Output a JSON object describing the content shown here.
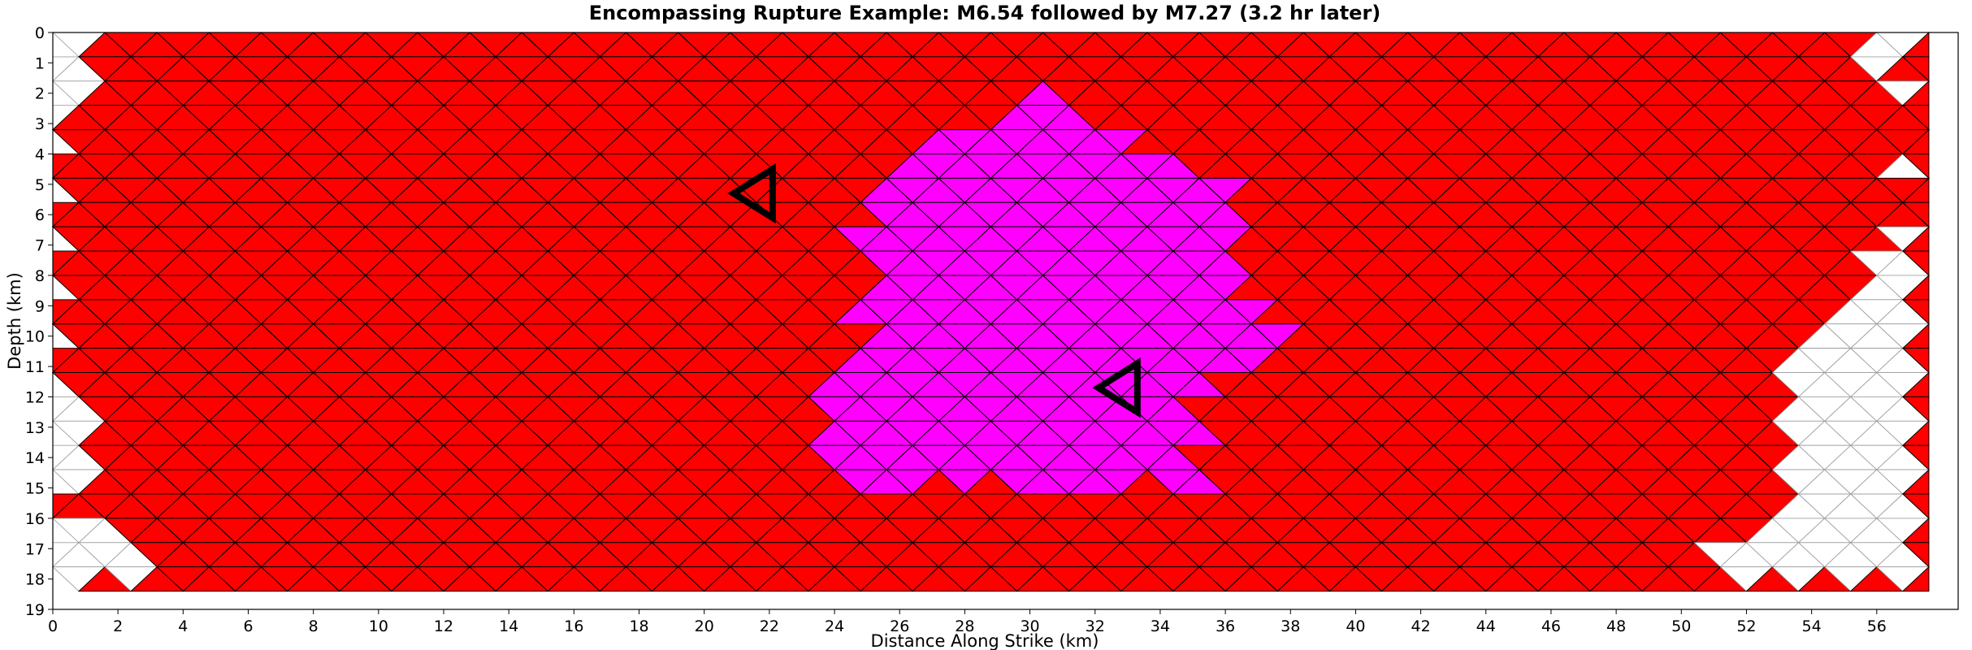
{
  "chart_data": {
    "type": "heatmap",
    "title": "Encompassing Rupture Example: M6.54 followed by M7.27 (3.2 hr later)",
    "xlabel": "Distance Along Strike (km)",
    "ylabel": "Depth (km)",
    "xlim": [
      0,
      58.5
    ],
    "ylim": [
      19,
      0
    ],
    "x_ticks": [
      "0",
      "2",
      "4",
      "6",
      "8",
      "10",
      "12",
      "14",
      "16",
      "18",
      "20",
      "22",
      "24",
      "26",
      "28",
      "30",
      "32",
      "34",
      "36",
      "38",
      "40",
      "42",
      "44",
      "46",
      "48",
      "50",
      "52",
      "54",
      "56"
    ],
    "y_ticks": [
      "0",
      "1",
      "2",
      "3",
      "4",
      "5",
      "6",
      "7",
      "8",
      "9",
      "10",
      "11",
      "12",
      "13",
      "14",
      "15",
      "16",
      "17",
      "18",
      "19"
    ],
    "mesh": {
      "element": "triangle",
      "spacing_km": 1.6,
      "extent_x_km": [
        0,
        57.6
      ],
      "extent_y_km": [
        0,
        18
      ]
    },
    "series": [
      {
        "color": "#ff0000",
        "extent_x_km": [
          0,
          57.6
        ],
        "extent_y_km": [
          0,
          18
        ]
      },
      {
        "color": "#ff00ff",
        "extent_x_km": [
          24.0,
          38.4
        ],
        "extent_y_km": [
          2.0,
          15.3
        ]
      }
    ],
    "hypocenters": [
      {
        "x": 21.6,
        "y": 5.3,
        "color": "#000000"
      },
      {
        "x": 32.8,
        "y": 11.7,
        "color": "#000000"
      }
    ],
    "colors": {
      "first_rupture": "#ff0000",
      "second_rupture": "#ff00ff",
      "mesh_edge": "#000000",
      "unruptured_edge": "#a0a0a0"
    }
  }
}
